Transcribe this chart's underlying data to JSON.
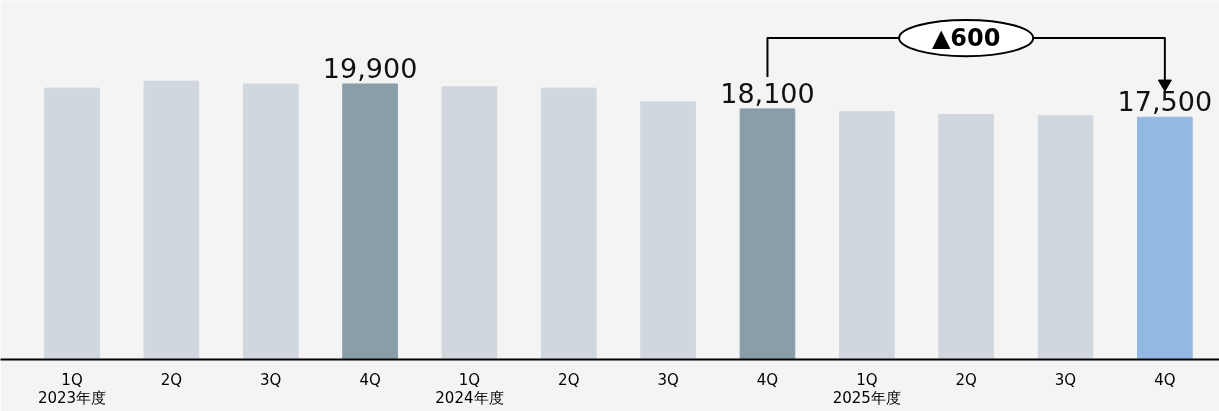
{
  "chart_data": {
    "type": "bar",
    "categories": [
      "1Q\n2023年度",
      "2Q",
      "3Q",
      "4Q",
      "1Q\n2024年度",
      "2Q",
      "3Q",
      "4Q",
      "1Q\n2025年度",
      "2Q",
      "3Q",
      "4Q"
    ],
    "values": [
      19600,
      20100,
      19900,
      19900,
      19700,
      19600,
      18600,
      18100,
      17900,
      17700,
      17600,
      17500
    ],
    "colors": [
      "#d0d7de",
      "#d0d7de",
      "#d0d7de",
      "#8a9ea9",
      "#d0d7de",
      "#d0d7de",
      "#d0d7de",
      "#8a9ea9",
      "#d0d7de",
      "#d0d7de",
      "#d0d7de",
      "#94b8e4"
    ],
    "value_labels": [
      null,
      null,
      null,
      "19,900",
      null,
      null,
      null,
      "18,100",
      null,
      null,
      null,
      "17,500"
    ],
    "annotations": [
      "▲600"
    ],
    "tick_labels": "x"
  }
}
